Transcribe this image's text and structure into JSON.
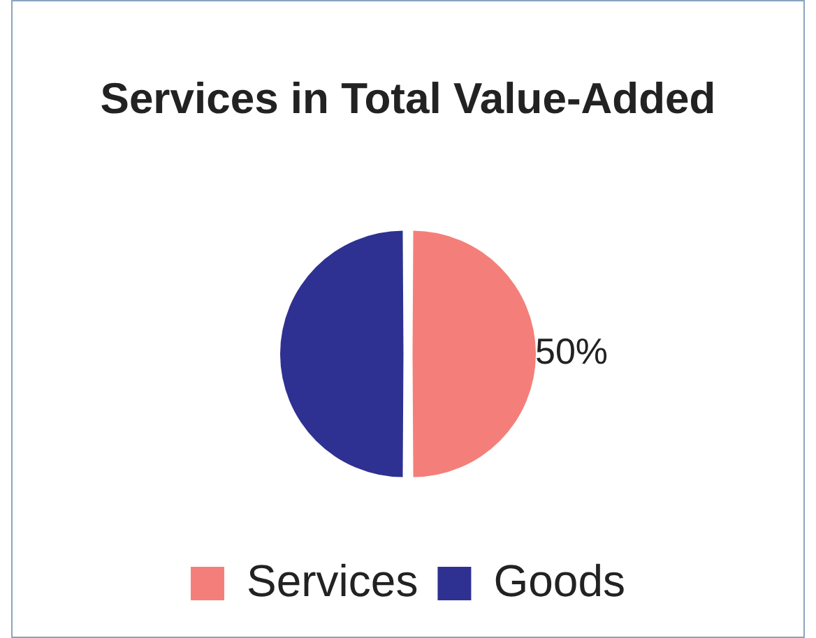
{
  "chart_data": {
    "type": "pie",
    "title": "Services in Total Value-Added",
    "categories": [
      "Services",
      "Goods"
    ],
    "values": [
      50,
      50
    ],
    "colors": [
      "#f47f7a",
      "#2e3192"
    ],
    "value_labels": [
      "50%",
      null
    ],
    "legend": "bottom"
  }
}
